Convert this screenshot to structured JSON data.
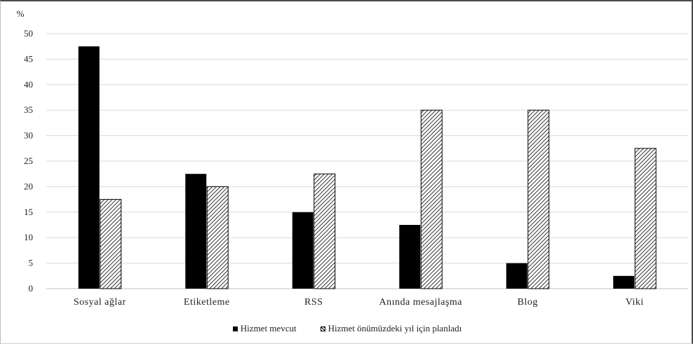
{
  "chart_data": {
    "type": "bar",
    "unit_label": "%",
    "categories": [
      "Sosyal ağlar",
      "Etiketleme",
      "RSS",
      "Anında mesajlaşma",
      "Blog",
      "Viki"
    ],
    "series": [
      {
        "name": "Hizmet mevcut",
        "values": [
          47.5,
          22.5,
          15,
          12.5,
          5,
          2.5
        ],
        "fill": "#000000"
      },
      {
        "name": "Hizmet önümüzdeki yıl için planladı",
        "values": [
          17.5,
          20,
          22.5,
          35,
          35,
          27.5
        ],
        "fill": "hatch"
      }
    ],
    "ylim": [
      0,
      50
    ],
    "yticks": [
      0,
      5,
      10,
      15,
      20,
      25,
      30,
      35,
      40,
      45,
      50
    ],
    "grid": true,
    "legend_position": "bottom",
    "grid_color": "#d9d9d9"
  }
}
